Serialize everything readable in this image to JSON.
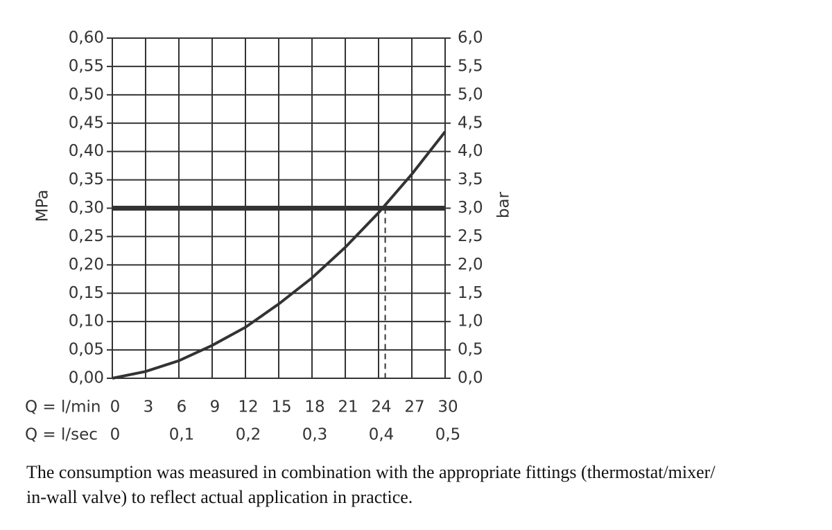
{
  "chart_data": {
    "type": "line",
    "x": [
      0,
      3,
      6,
      9,
      12,
      15,
      18,
      21,
      24,
      27,
      30
    ],
    "series": [
      {
        "color": "#333333",
        "values": [
          0,
          0.012,
          0.031,
          0.058,
          0.09,
          0.131,
          0.177,
          0.231,
          0.292,
          0.36,
          0.435
        ]
      }
    ],
    "xlim": [
      0,
      30
    ],
    "xticks": [
      0,
      3,
      6,
      9,
      12,
      15,
      18,
      21,
      24,
      27,
      30
    ],
    "x2lim": [
      0,
      0.5
    ],
    "x2ticks": [
      0,
      {
        "value": 0.1,
        "label": "0,1"
      },
      {
        "value": 0.2,
        "label": "0,2"
      },
      {
        "value": 0.3,
        "label": "0,3"
      },
      {
        "value": 0.4,
        "label": "0,4"
      },
      {
        "value": 0.5,
        "label": "0,5"
      }
    ],
    "ylim": [
      0,
      0.6
    ],
    "yticks": [
      {
        "value": 0,
        "label": "0,00"
      },
      {
        "value": 0.05,
        "label": "0,05"
      },
      {
        "value": 0.1,
        "label": "0,10"
      },
      {
        "value": 0.15,
        "label": "0,15"
      },
      {
        "value": 0.2,
        "label": "0,20"
      },
      {
        "value": 0.25,
        "label": "0,25"
      },
      {
        "value": 0.3,
        "label": "0,30"
      },
      {
        "value": 0.35,
        "label": "0,35"
      },
      {
        "value": 0.4,
        "label": "0,40"
      },
      {
        "value": 0.45,
        "label": "0,45"
      },
      {
        "value": 0.5,
        "label": "0,50"
      },
      {
        "value": 0.55,
        "label": "0,55"
      },
      {
        "value": 0.6,
        "label": "0,60"
      }
    ],
    "y2lim": [
      0,
      6
    ],
    "y2ticks": [
      {
        "value": 0,
        "label": "0,0"
      },
      {
        "value": 0.5,
        "label": "0,5"
      },
      {
        "value": 1,
        "label": "1,0"
      },
      {
        "value": 1.5,
        "label": "1,5"
      },
      {
        "value": 2,
        "label": "2,0"
      },
      {
        "value": 2.5,
        "label": "2,5"
      },
      {
        "value": 3,
        "label": "3,0"
      },
      {
        "value": 3.5,
        "label": "3,5"
      },
      {
        "value": 4,
        "label": "4,0"
      },
      {
        "value": 4.5,
        "label": "4,5"
      },
      {
        "value": 5,
        "label": "5,0"
      },
      {
        "value": 5.5,
        "label": "5,5"
      },
      {
        "value": 6,
        "label": "6,0"
      }
    ],
    "ylabel": "MPa",
    "y2label": "bar",
    "xlabel": "Q = l/min",
    "x2label": "Q = l/sec",
    "hline": 0.3,
    "vline": 24.6,
    "grid": true,
    "caption": [
      "The consumption was measured in combination with the appropriate fittings (thermostat/mixer/",
      "in-wall valve) to reflect actual application in practice."
    ]
  }
}
